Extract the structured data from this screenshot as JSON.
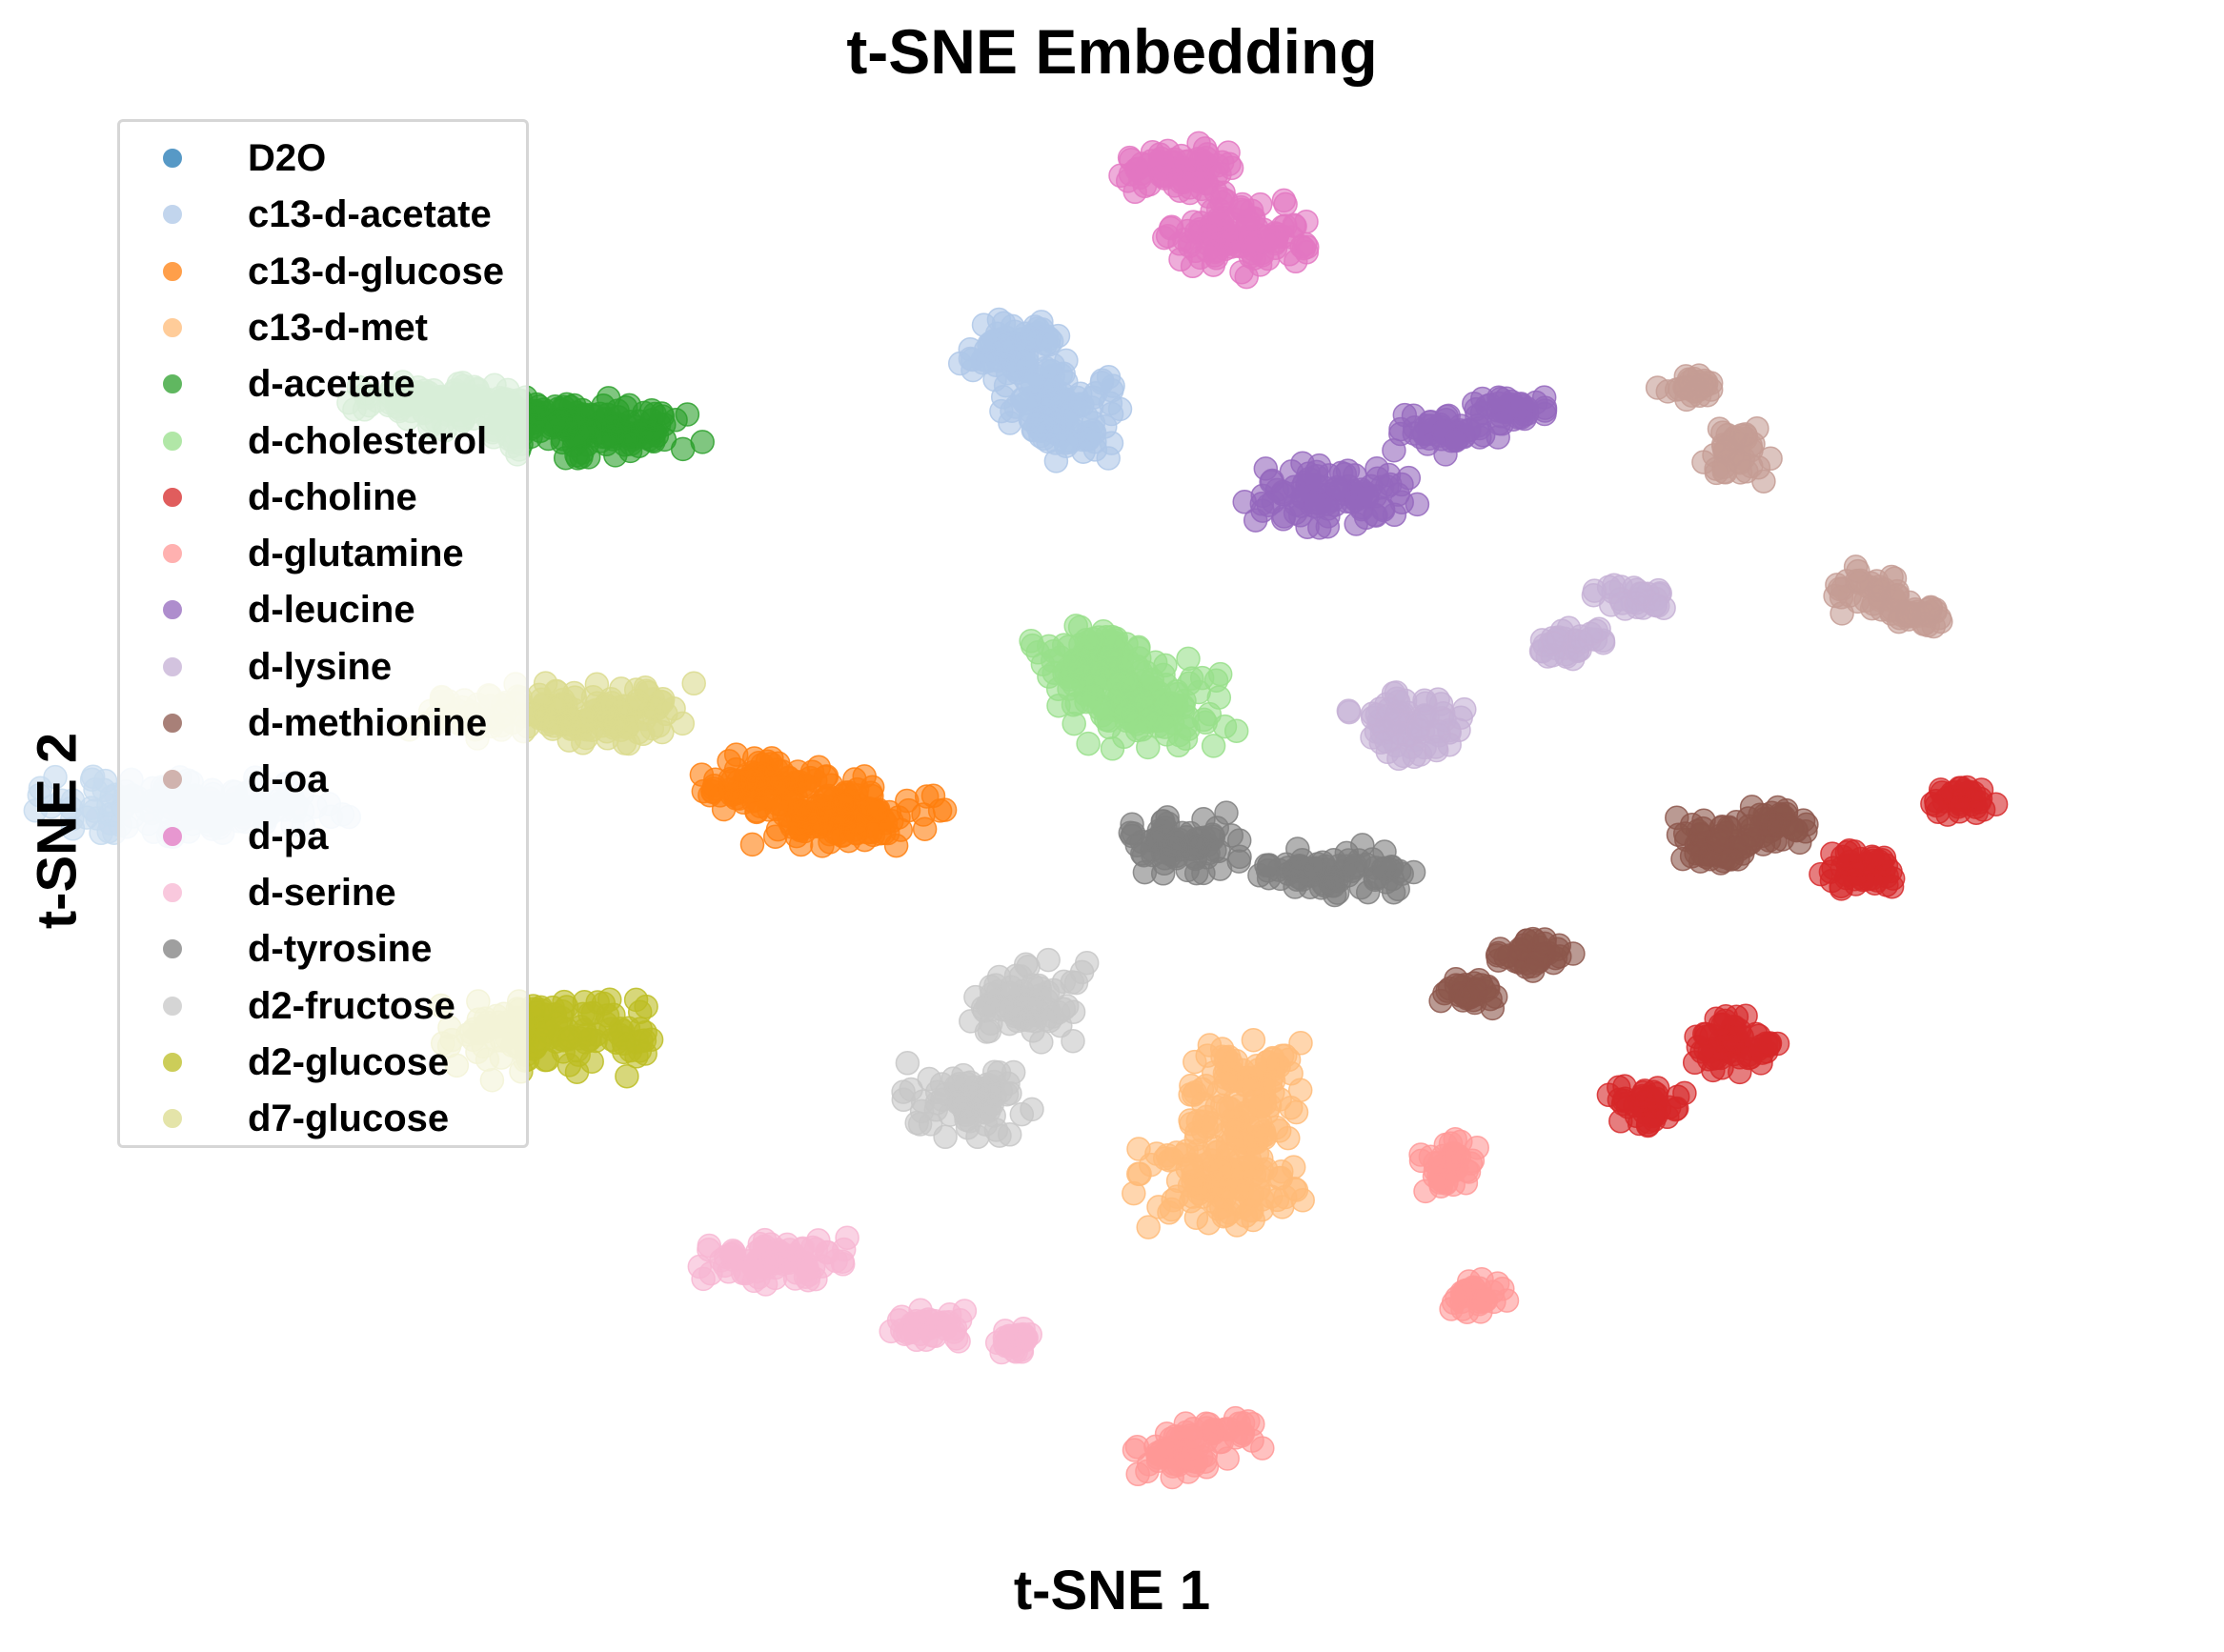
{
  "chart_data": {
    "type": "scatter",
    "title": "t-SNE Embedding",
    "xlabel": "t-SNE 1",
    "ylabel": "t-SNE 2",
    "xlim": [
      -10,
      10
    ],
    "ylim": [
      -10,
      10
    ],
    "axes_visible": false,
    "grid": false,
    "legend_position": "upper-left",
    "point_alpha": 0.6,
    "series": [
      {
        "name": "D2O",
        "color": "#1f77b4",
        "clusters": []
      },
      {
        "name": "c13-d-acetate",
        "color": "#aec7e8",
        "clusters": [
          {
            "center": [
              -1.5,
              6.62
            ],
            "spread": [
              0.28,
              0.24
            ],
            "count": 80
          },
          {
            "center": [
              -0.95,
              5.7
            ],
            "spread": [
              0.33,
              0.32
            ],
            "count": 110
          }
        ]
      },
      {
        "name": "c13-d-glucose",
        "color": "#ff7f0e",
        "clusters": [
          {
            "center": [
              -4.2,
              0.57
            ],
            "spread": [
              0.36,
              0.18
            ],
            "count": 90
          },
          {
            "center": [
              -3.35,
              0.18
            ],
            "spread": [
              0.5,
              0.22
            ],
            "count": 140
          }
        ]
      },
      {
        "name": "c13-d-met",
        "color": "#ffbb78",
        "clusters": [
          {
            "center": [
              0.95,
              -3.48
            ],
            "spread": [
              0.3,
              0.22
            ],
            "count": 60
          },
          {
            "center": [
              0.95,
              -4.12
            ],
            "spread": [
              0.3,
              0.22
            ],
            "count": 60
          },
          {
            "center": [
              0.72,
              -4.98
            ],
            "spread": [
              0.45,
              0.3
            ],
            "count": 110
          }
        ]
      },
      {
        "name": "d-acetate",
        "color": "#2ca02c",
        "clusters": [
          {
            "center": [
              -7.9,
              5.88
            ],
            "spread": [
              0.38,
              0.14
            ],
            "count": 90
          },
          {
            "center": [
              -7.05,
              5.72
            ],
            "spread": [
              0.38,
              0.15
            ],
            "count": 80
          },
          {
            "center": [
              -6.0,
              5.5
            ],
            "spread": [
              0.55,
              0.2
            ],
            "count": 140
          }
        ]
      },
      {
        "name": "d-cholesterol",
        "color": "#98df8a",
        "clusters": [
          {
            "center": [
              -0.62,
              2.3
            ],
            "spread": [
              0.35,
              0.22
            ],
            "count": 90
          },
          {
            "center": [
              -0.05,
              1.7
            ],
            "spread": [
              0.45,
              0.3
            ],
            "count": 140
          }
        ]
      },
      {
        "name": "d-choline",
        "color": "#d62728",
        "clusters": [
          {
            "center": [
              8.75,
              0.33
            ],
            "spread": [
              0.18,
              0.1
            ],
            "count": 40
          },
          {
            "center": [
              7.68,
              -0.65
            ],
            "spread": [
              0.22,
              0.13
            ],
            "count": 50
          },
          {
            "center": [
              6.27,
              -3.05
            ],
            "spread": [
              0.26,
              0.19
            ],
            "count": 70
          },
          {
            "center": [
              5.35,
              -3.9
            ],
            "spread": [
              0.2,
              0.14
            ],
            "count": 45
          }
        ]
      },
      {
        "name": "d-glutamine",
        "color": "#ff9896",
        "clusters": [
          {
            "center": [
              3.2,
              -4.72
            ],
            "spread": [
              0.17,
              0.19
            ],
            "count": 40
          },
          {
            "center": [
              3.5,
              -6.58
            ],
            "spread": [
              0.16,
              0.12
            ],
            "count": 30
          },
          {
            "center": [
              0.72,
              -8.52
            ],
            "spread": [
              0.26,
              0.14
            ],
            "count": 40
          },
          {
            "center": [
              0.22,
              -8.8
            ],
            "spread": [
              0.2,
              0.13
            ],
            "count": 35
          }
        ]
      },
      {
        "name": "d-leucine",
        "color": "#9467bd",
        "clusters": [
          {
            "center": [
              3.85,
              5.78
            ],
            "spread": [
              0.25,
              0.1
            ],
            "count": 40
          },
          {
            "center": [
              3.2,
              5.47
            ],
            "spread": [
              0.28,
              0.15
            ],
            "count": 50
          },
          {
            "center": [
              1.9,
              4.6
            ],
            "spread": [
              0.45,
              0.22
            ],
            "count": 100
          }
        ]
      },
      {
        "name": "d-lysine",
        "color": "#c5b0d5",
        "clusters": [
          {
            "center": [
              5.18,
              3.15
            ],
            "spread": [
              0.2,
              0.1
            ],
            "count": 30
          },
          {
            "center": [
              4.55,
              2.5
            ],
            "spread": [
              0.2,
              0.13
            ],
            "count": 35
          },
          {
            "center": [
              2.78,
              1.38
            ],
            "spread": [
              0.33,
              0.27
            ],
            "count": 75
          }
        ]
      },
      {
        "name": "d-methionine",
        "color": "#8c564b",
        "clusters": [
          {
            "center": [
              6.75,
              -0.02
            ],
            "spread": [
              0.16,
              0.14
            ],
            "count": 40
          },
          {
            "center": [
              6.1,
              -0.25
            ],
            "spread": [
              0.22,
              0.17
            ],
            "count": 55
          },
          {
            "center": [
              4.12,
              -1.8
            ],
            "spread": [
              0.2,
              0.12
            ],
            "count": 40
          },
          {
            "center": [
              3.4,
              -2.37
            ],
            "spread": [
              0.18,
              0.11
            ],
            "count": 35
          }
        ]
      },
      {
        "name": "d-oa",
        "color": "#c49c94",
        "clusters": [
          {
            "center": [
              5.78,
              6.08
            ],
            "spread": [
              0.2,
              0.1
            ],
            "count": 30
          },
          {
            "center": [
              6.3,
              5.18
            ],
            "spread": [
              0.2,
              0.2
            ],
            "count": 40
          },
          {
            "center": [
              7.75,
              3.25
            ],
            "spread": [
              0.23,
              0.15
            ],
            "count": 40
          },
          {
            "center": [
              8.33,
              2.9
            ],
            "spread": [
              0.16,
              0.1
            ],
            "count": 30
          }
        ]
      },
      {
        "name": "d-pa",
        "color": "#e377c2",
        "clusters": [
          {
            "center": [
              0.27,
              9.08
            ],
            "spread": [
              0.3,
              0.19
            ],
            "count": 80
          },
          {
            "center": [
              0.9,
              8.15
            ],
            "spread": [
              0.38,
              0.25
            ],
            "count": 110
          }
        ]
      },
      {
        "name": "d-serine",
        "color": "#f7b6d2",
        "clusters": [
          {
            "center": [
              -4.1,
              -6.05
            ],
            "spread": [
              0.4,
              0.16
            ],
            "count": 80
          },
          {
            "center": [
              -2.43,
              -7.0
            ],
            "spread": [
              0.2,
              0.14
            ],
            "count": 40
          },
          {
            "center": [
              -1.5,
              -7.17
            ],
            "spread": [
              0.13,
              0.1
            ],
            "count": 30
          }
        ]
      },
      {
        "name": "d-tyrosine",
        "color": "#7f7f7f",
        "clusters": [
          {
            "center": [
              0.32,
              -0.28
            ],
            "spread": [
              0.3,
              0.2
            ],
            "count": 75
          },
          {
            "center": [
              1.92,
              -0.7
            ],
            "spread": [
              0.42,
              0.19
            ],
            "count": 80
          }
        ]
      },
      {
        "name": "d2-fructose",
        "color": "#c7c7c7",
        "clusters": [
          {
            "center": [
              -1.4,
              -2.45
            ],
            "spread": [
              0.33,
              0.27
            ],
            "count": 70
          },
          {
            "center": [
              -2.0,
              -3.83
            ],
            "spread": [
              0.32,
              0.24
            ],
            "count": 70
          }
        ]
      },
      {
        "name": "d2-glucose",
        "color": "#bcbd22",
        "clusters": [
          {
            "center": [
              -6.6,
              -2.93
            ],
            "spread": [
              0.55,
              0.3
            ],
            "count": 140
          }
        ]
      },
      {
        "name": "d7-glucose",
        "color": "#dbdb8d",
        "clusters": [
          {
            "center": [
              -6.45,
              1.53
            ],
            "spread": [
              0.75,
              0.2
            ],
            "count": 170
          }
        ]
      },
      {
        "name": "",
        "color": "#c6dbef",
        "clusters": [
          {
            "center": [
              -10.4,
              0.26
            ],
            "spread": [
              0.8,
              0.2
            ],
            "count": 160
          }
        ]
      }
    ]
  }
}
